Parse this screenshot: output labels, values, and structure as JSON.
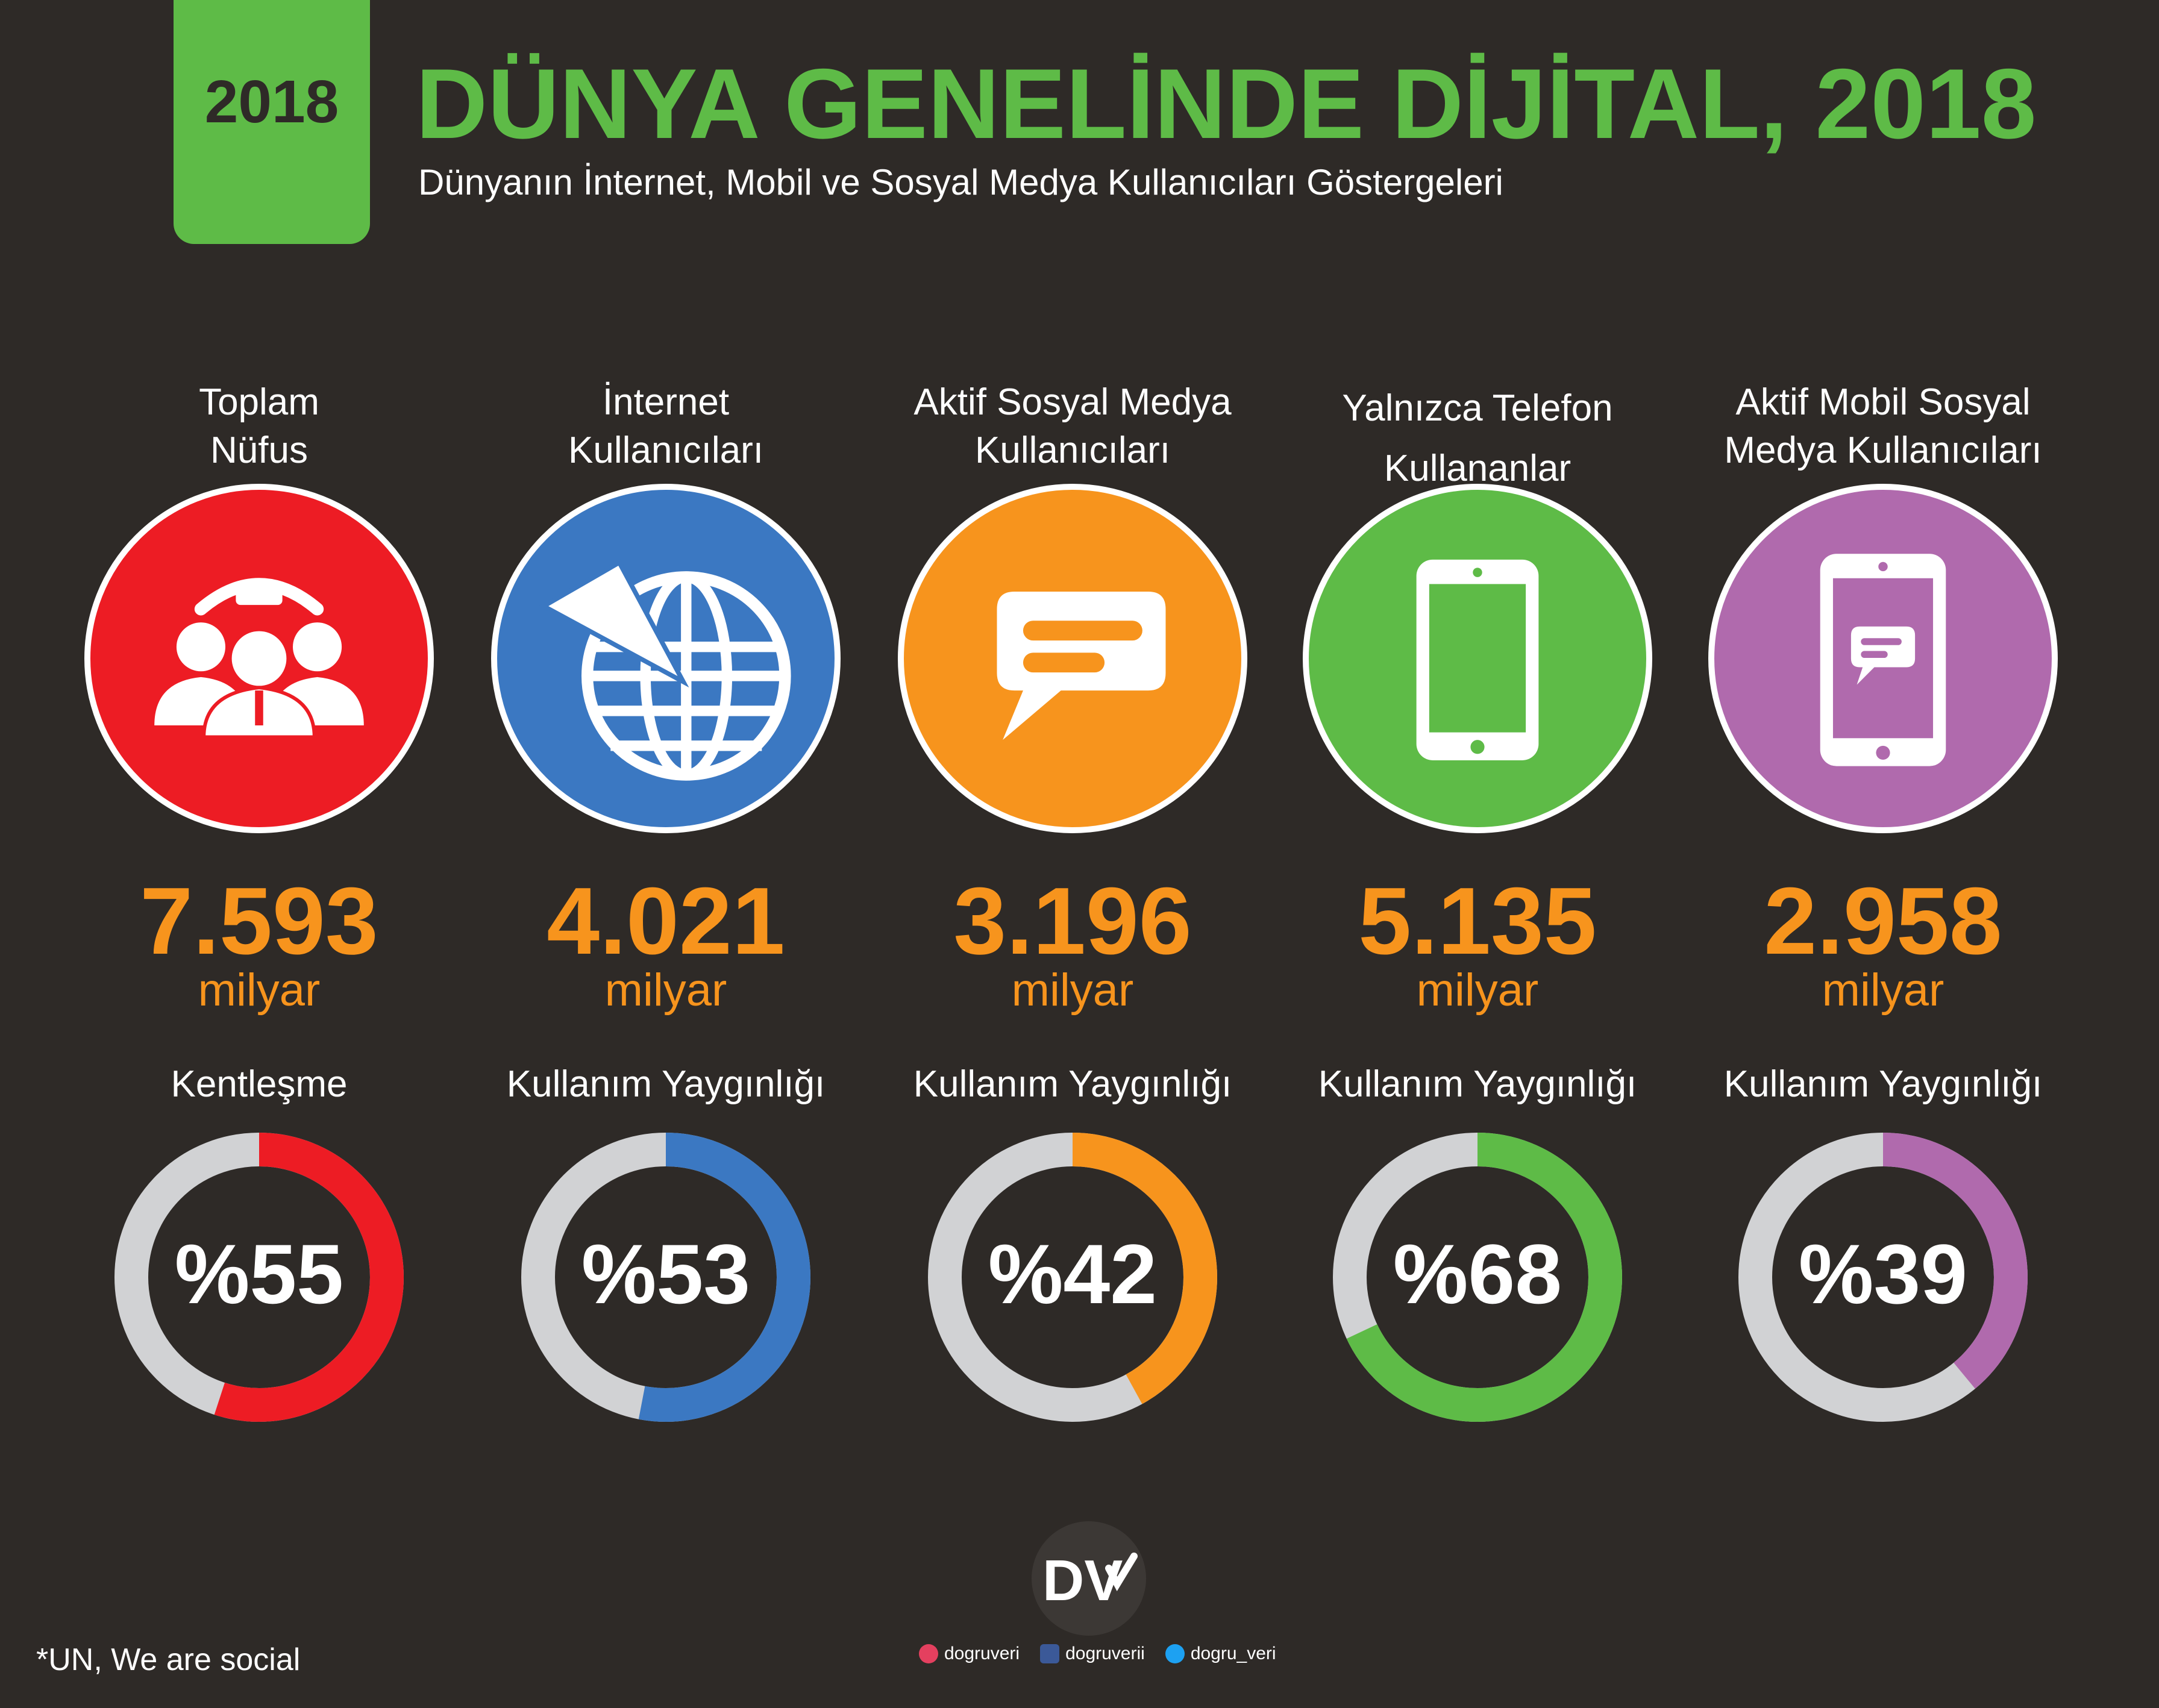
{
  "header": {
    "year_badge": "2018",
    "title": "DÜNYA GENELİNDE DİJİTAL, 2018",
    "subtitle": "Dünyanın İnternet, Mobil ve Sosyal Medya Kullanıcıları Göstergeleri"
  },
  "colors": {
    "background": "#2e2a27",
    "accent_green": "#5ebb47",
    "number_orange": "#f7941d",
    "donut_track": "#d1d2d4"
  },
  "metrics": [
    {
      "label": "Toplam\nNüfus",
      "icon": "people-group-icon",
      "color": "#ed1c24",
      "value": "7.593",
      "unit": "milyar",
      "sub_label": "Kentleşme",
      "percent_text": "%55",
      "percent": 55
    },
    {
      "label": "İnternet\nKullanıcıları",
      "icon": "globe-cursor-icon",
      "color": "#3b78c2",
      "value": "4.021",
      "unit": "milyar",
      "sub_label": "Kullanım Yaygınlığı",
      "percent_text": "%53",
      "percent": 53
    },
    {
      "label": "Aktif Sosyal Medya\nKullanıcıları",
      "icon": "chat-bubble-icon",
      "color": "#f7941d",
      "value": "3.196",
      "unit": "milyar",
      "sub_label": "Kullanım Yaygınlığı",
      "percent_text": "%42",
      "percent": 42
    },
    {
      "label": "Yalnızca Telefon\nKullananlar",
      "icon": "smartphone-icon",
      "color": "#5ebb47",
      "value": "5.135",
      "unit": "milyar",
      "sub_label": "Kullanım Yaygınlığı",
      "percent_text": "%68",
      "percent": 68
    },
    {
      "label": "Aktif Mobil Sosyal\nMedya Kullanıcıları",
      "icon": "smartphone-chat-icon",
      "color": "#b06aad",
      "value": "2.958",
      "unit": "milyar",
      "sub_label": "Kullanım Yaygınlığı",
      "percent_text": "%39",
      "percent": 39
    }
  ],
  "footer": {
    "source": "*UN, We are social",
    "logo_text": "DV",
    "socials": [
      {
        "icon": "instagram-icon",
        "color": "#e4405f",
        "handle": "dogruveri"
      },
      {
        "icon": "facebook-icon",
        "color": "#3b5998",
        "handle": "dogruverii"
      },
      {
        "icon": "twitter-icon",
        "color": "#1da1f2",
        "handle": "dogru_veri"
      }
    ]
  }
}
